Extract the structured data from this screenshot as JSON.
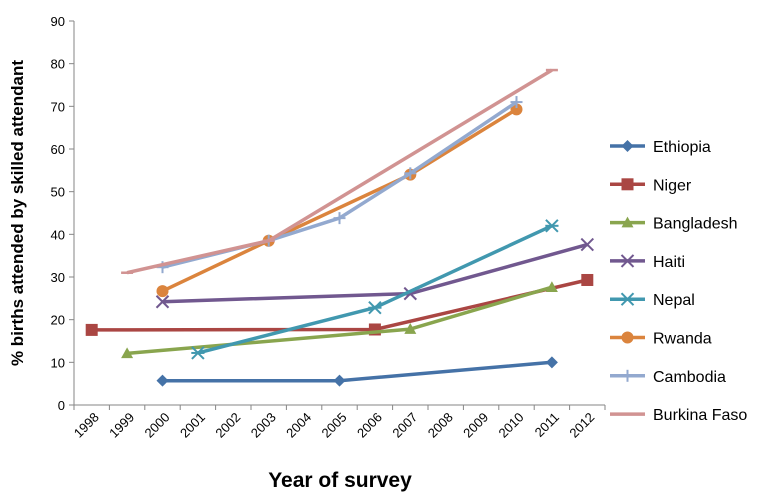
{
  "chart_data": {
    "type": "line",
    "xlabel": "Year of survey",
    "ylabel": "% births attended by skilled attendant",
    "xlim": [
      1997.5,
      2012.5
    ],
    "ylim": [
      0,
      90
    ],
    "x_ticks": [
      1998,
      1999,
      2000,
      2001,
      2002,
      2003,
      2004,
      2005,
      2006,
      2007,
      2008,
      2009,
      2010,
      2011,
      2012
    ],
    "y_ticks": [
      0,
      10,
      20,
      30,
      40,
      50,
      60,
      70,
      80,
      90
    ],
    "grid": false,
    "legend_position": "right",
    "series": [
      {
        "name": "Ethiopia",
        "color": "#4572A7",
        "marker": "diamond",
        "points": [
          [
            2000,
            5.7
          ],
          [
            2005,
            5.7
          ],
          [
            2011,
            10.0
          ]
        ]
      },
      {
        "name": "Niger",
        "color": "#AA4643",
        "marker": "square",
        "points": [
          [
            1998,
            17.6
          ],
          [
            2006,
            17.7
          ],
          [
            2012,
            29.3
          ]
        ]
      },
      {
        "name": "Bangladesh",
        "color": "#89A54E",
        "marker": "triangle",
        "points": [
          [
            1999,
            12.1
          ],
          [
            2007,
            17.8
          ],
          [
            2011,
            27.6
          ]
        ]
      },
      {
        "name": "Haiti",
        "color": "#71588F",
        "marker": "x",
        "points": [
          [
            2000,
            24.2
          ],
          [
            2007,
            26.1
          ],
          [
            2012,
            37.6
          ]
        ]
      },
      {
        "name": "Nepal",
        "color": "#4198AF",
        "marker": "asterisk",
        "points": [
          [
            2001,
            12.2
          ],
          [
            2006,
            22.8
          ],
          [
            2011,
            42.0
          ]
        ]
      },
      {
        "name": "Rwanda",
        "color": "#DB843D",
        "marker": "circle",
        "points": [
          [
            2000,
            26.7
          ],
          [
            2003,
            38.5
          ],
          [
            2007,
            54.0
          ],
          [
            2010,
            69.3
          ]
        ]
      },
      {
        "name": "Cambodia",
        "color": "#93A9CF",
        "marker": "plus",
        "points": [
          [
            2000,
            32.3
          ],
          [
            2003,
            38.5
          ],
          [
            2005,
            43.8
          ],
          [
            2007,
            54.3
          ],
          [
            2010,
            71.0
          ]
        ]
      },
      {
        "name": "Burkina Faso",
        "color": "#D19392",
        "marker": "dash",
        "points": [
          [
            1999,
            31.0
          ],
          [
            2003,
            38.5
          ],
          [
            2011,
            78.5
          ]
        ]
      }
    ]
  }
}
